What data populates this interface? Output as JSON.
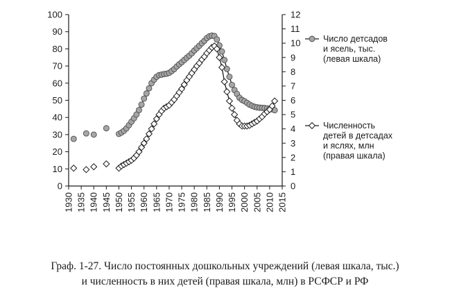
{
  "caption": {
    "line1": "Граф. 1-27. Число постоянных дошкольных учреждений (левая шкала, тыс.)",
    "line2": "и численность в них детей (правая шкала, млн) в РСФСР и РФ"
  },
  "chart_data": {
    "type": "line",
    "xlim": [
      1930,
      2015
    ],
    "x_ticks": [
      "1930",
      "1935",
      "1940",
      "1945",
      "1950",
      "1955",
      "1960",
      "1965",
      "1970",
      "1975",
      "1980",
      "1985",
      "1990",
      "1995",
      "2000",
      "2005",
      "2010",
      "2015"
    ],
    "ylim_left": [
      0,
      100
    ],
    "y_ticks_left": [
      "0",
      "10",
      "20",
      "30",
      "40",
      "50",
      "60",
      "70",
      "80",
      "90",
      "100"
    ],
    "ylim_right": [
      0,
      12
    ],
    "y_ticks_right": [
      "0",
      "1",
      "2",
      "3",
      "4",
      "5",
      "6",
      "7",
      "8",
      "9",
      "10",
      "11",
      "12"
    ],
    "grid": false,
    "series": [
      {
        "name_lines": [
          "Число детсадов",
          "и ясель, тыс.",
          "(левая шкала)"
        ],
        "axis": "left",
        "marker": "circle",
        "color": "#a6a6a6",
        "isolated_points": [
          [
            1932,
            27.5
          ],
          [
            1937,
            30.7
          ],
          [
            1940,
            30
          ],
          [
            1945,
            33.7
          ]
        ],
        "line_points": [
          [
            1950,
            30.4
          ],
          [
            1951,
            31.2
          ],
          [
            1952,
            32.2
          ],
          [
            1953,
            33.6
          ],
          [
            1954,
            35.5
          ],
          [
            1955,
            37.5
          ],
          [
            1956,
            39.5
          ],
          [
            1957,
            41.7
          ],
          [
            1958,
            44.3
          ],
          [
            1959,
            47.5
          ],
          [
            1960,
            51.0
          ],
          [
            1961,
            54.0
          ],
          [
            1962,
            57.0
          ],
          [
            1963,
            60.0
          ],
          [
            1964,
            62.0
          ],
          [
            1965,
            63.7
          ],
          [
            1966,
            64.7
          ],
          [
            1967,
            65.0
          ],
          [
            1968,
            65.3
          ],
          [
            1969,
            65.5
          ],
          [
            1970,
            66.0
          ],
          [
            1971,
            67.0
          ],
          [
            1972,
            68.2
          ],
          [
            1973,
            69.7
          ],
          [
            1974,
            71.0
          ],
          [
            1975,
            72.2
          ],
          [
            1976,
            73.5
          ],
          [
            1977,
            74.8
          ],
          [
            1978,
            76.0
          ],
          [
            1979,
            77.4
          ],
          [
            1980,
            79.0
          ],
          [
            1981,
            80.4
          ],
          [
            1982,
            81.8
          ],
          [
            1983,
            83.3
          ],
          [
            1984,
            84.7
          ],
          [
            1985,
            86.3
          ],
          [
            1986,
            87.3
          ],
          [
            1987,
            87.7
          ],
          [
            1988,
            87.5
          ],
          [
            1989,
            85.5
          ],
          [
            1990,
            82.0
          ],
          [
            1991,
            78.5
          ],
          [
            1992,
            73.5
          ],
          [
            1993,
            68.3
          ],
          [
            1994,
            63.7
          ],
          [
            1995,
            59.0
          ],
          [
            1996,
            56.0
          ],
          [
            1997,
            53.7
          ],
          [
            1998,
            51.5
          ],
          [
            1999,
            50.2
          ],
          [
            2000,
            49.5
          ],
          [
            2001,
            48.5
          ],
          [
            2002,
            47.5
          ],
          [
            2003,
            46.8
          ],
          [
            2004,
            46.2
          ],
          [
            2005,
            45.9
          ],
          [
            2006,
            45.7
          ],
          [
            2007,
            45.6
          ],
          [
            2008,
            45.5
          ],
          [
            2009,
            45.3
          ],
          [
            2010,
            45.0
          ],
          [
            2011,
            44.8
          ],
          [
            2012,
            44.2
          ]
        ]
      },
      {
        "name_lines": [
          "Численность",
          "детей в детсадах",
          "и яслях, млн",
          "(правая шкала)"
        ],
        "axis": "right",
        "marker": "diamond",
        "color": "#ffffff",
        "isolated_points": [
          [
            1932,
            1.25
          ],
          [
            1937,
            1.15
          ],
          [
            1940,
            1.35
          ],
          [
            1945,
            1.55
          ]
        ],
        "line_points": [
          [
            1950,
            1.25
          ],
          [
            1951,
            1.4
          ],
          [
            1952,
            1.5
          ],
          [
            1953,
            1.6
          ],
          [
            1954,
            1.7
          ],
          [
            1955,
            1.8
          ],
          [
            1956,
            1.95
          ],
          [
            1957,
            2.15
          ],
          [
            1958,
            2.4
          ],
          [
            1959,
            2.7
          ],
          [
            1960,
            3.0
          ],
          [
            1961,
            3.3
          ],
          [
            1962,
            3.65
          ],
          [
            1963,
            4.0
          ],
          [
            1964,
            4.35
          ],
          [
            1965,
            4.7
          ],
          [
            1966,
            5.0
          ],
          [
            1967,
            5.25
          ],
          [
            1968,
            5.45
          ],
          [
            1969,
            5.55
          ],
          [
            1970,
            5.65
          ],
          [
            1971,
            5.85
          ],
          [
            1972,
            6.05
          ],
          [
            1973,
            6.3
          ],
          [
            1974,
            6.55
          ],
          [
            1975,
            6.8
          ],
          [
            1976,
            7.1
          ],
          [
            1977,
            7.4
          ],
          [
            1978,
            7.65
          ],
          [
            1979,
            7.9
          ],
          [
            1980,
            8.15
          ],
          [
            1981,
            8.4
          ],
          [
            1982,
            8.6
          ],
          [
            1983,
            8.85
          ],
          [
            1984,
            9.05
          ],
          [
            1985,
            9.3
          ],
          [
            1986,
            9.5
          ],
          [
            1987,
            9.7
          ],
          [
            1988,
            9.8
          ],
          [
            1989,
            9.6
          ],
          [
            1990,
            9.0
          ],
          [
            1991,
            8.3
          ],
          [
            1992,
            7.3
          ],
          [
            1993,
            6.6
          ],
          [
            1994,
            5.95
          ],
          [
            1995,
            5.45
          ],
          [
            1996,
            5.0
          ],
          [
            1997,
            4.6
          ],
          [
            1998,
            4.35
          ],
          [
            1999,
            4.2
          ],
          [
            2000,
            4.2
          ],
          [
            2001,
            4.2
          ],
          [
            2002,
            4.25
          ],
          [
            2003,
            4.35
          ],
          [
            2004,
            4.45
          ],
          [
            2005,
            4.55
          ],
          [
            2006,
            4.7
          ],
          [
            2007,
            4.85
          ],
          [
            2008,
            5.05
          ],
          [
            2009,
            5.2
          ],
          [
            2010,
            5.35
          ],
          [
            2011,
            5.6
          ],
          [
            2012,
            5.95
          ]
        ]
      }
    ]
  }
}
